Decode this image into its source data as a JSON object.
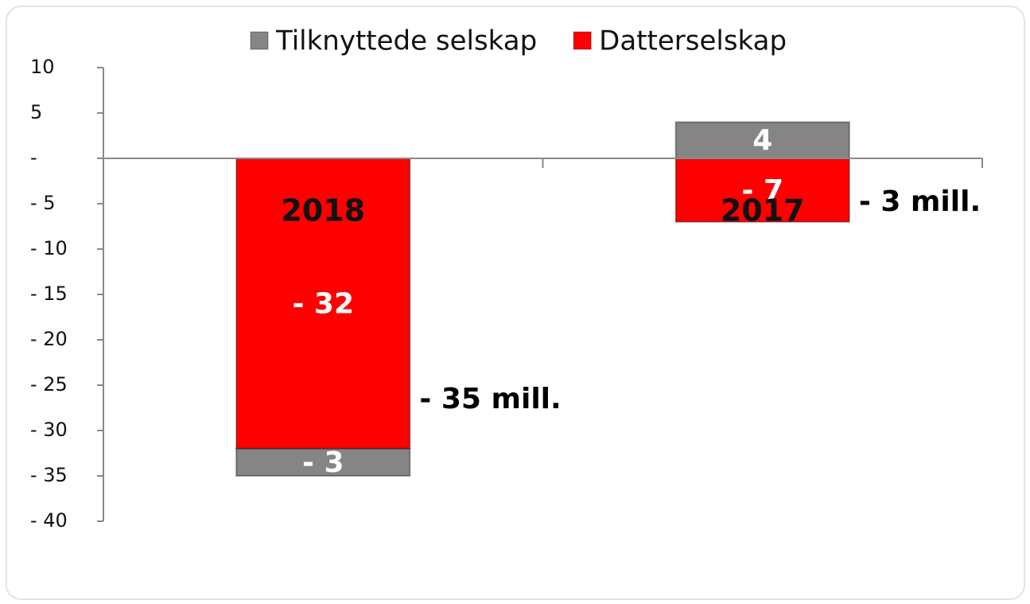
{
  "chart_data": {
    "type": "stacked_bar",
    "categories": [
      "2018",
      "2017"
    ],
    "series": [
      {
        "name": "Tilknyttede selskap",
        "color": "#858585",
        "values": [
          -3,
          4
        ],
        "value_labels": [
          "- 3",
          "4"
        ]
      },
      {
        "name": "Datterselskap",
        "color": "#ff0000",
        "values": [
          -32,
          -7
        ],
        "value_labels": [
          "- 32",
          "- 7"
        ]
      }
    ],
    "ylim": [
      -40,
      10
    ],
    "yticks": [
      10,
      5,
      {
        "value": 0,
        "label": "-"
      },
      {
        "value": -5,
        "label": "- 5"
      },
      {
        "value": -10,
        "label": "- 10"
      },
      {
        "value": -15,
        "label": "- 15"
      },
      {
        "value": -20,
        "label": "- 20"
      },
      {
        "value": -25,
        "label": "- 25"
      },
      {
        "value": -30,
        "label": "- 30"
      },
      {
        "value": -35,
        "label": "- 35"
      },
      {
        "value": -40,
        "label": "- 40"
      }
    ],
    "annotations": [
      "- 35 mill.",
      "- 3 mill."
    ]
  }
}
